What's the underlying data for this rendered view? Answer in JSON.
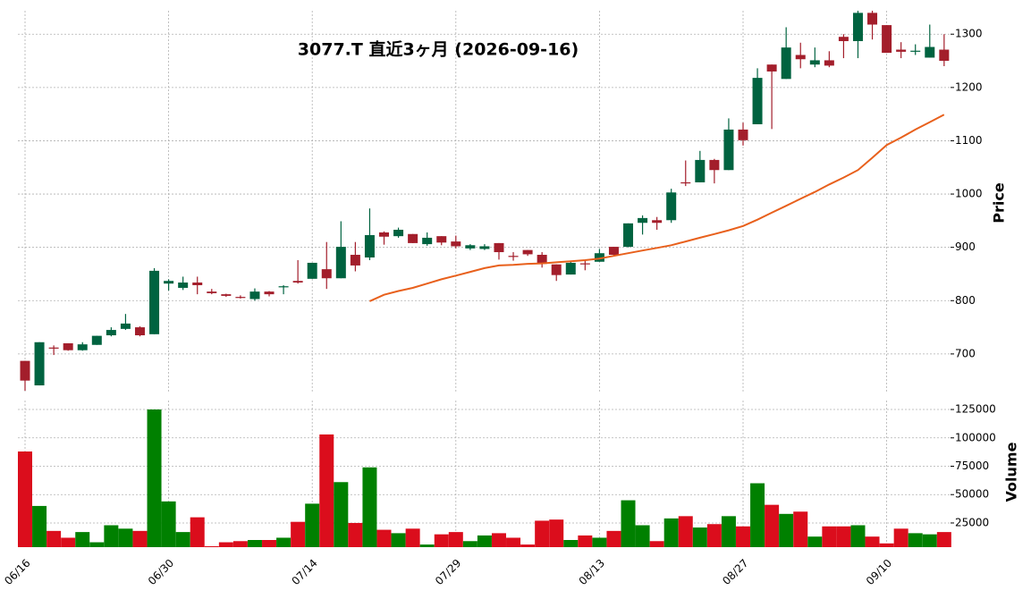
{
  "chart_data": {
    "type": "candlestick",
    "title": "3077.T  直近3ヶ月  (2026-09-16)",
    "ylabel": "Price",
    "categories": [
      "06/16",
      null,
      null,
      null,
      null,
      null,
      null,
      null,
      null,
      null,
      "06/30",
      null,
      null,
      null,
      null,
      null,
      null,
      null,
      null,
      null,
      "07/14",
      null,
      null,
      null,
      null,
      null,
      null,
      null,
      null,
      null,
      "07/29",
      null,
      null,
      null,
      null,
      null,
      null,
      null,
      null,
      null,
      "08/13",
      null,
      null,
      null,
      null,
      null,
      null,
      null,
      null,
      null,
      "08/27",
      null,
      null,
      null,
      null,
      null,
      null,
      null,
      null,
      null,
      "09/10",
      null,
      null,
      null,
      null
    ],
    "open": [
      687,
      641,
      712,
      720,
      707,
      717,
      735,
      747,
      750,
      737,
      832,
      824,
      834,
      817,
      812,
      807,
      803,
      817,
      825,
      837,
      841,
      859,
      842,
      886,
      881,
      928,
      921,
      925,
      906,
      921,
      911,
      898,
      897,
      908,
      884,
      895,
      886,
      868,
      849,
      870,
      873,
      901,
      901,
      946,
      951,
      951,
      1022,
      1022,
      1064,
      1045,
      1121,
      1131,
      1243,
      1216,
      1261,
      1243,
      1251,
      1295,
      1287,
      1340,
      1317,
      1271,
      1267,
      1256,
      1271
    ],
    "high": [
      687,
      722,
      716,
      720,
      722,
      734,
      750,
      775,
      752,
      861,
      840,
      845,
      845,
      822,
      813,
      810,
      823,
      818,
      829,
      876,
      871,
      910,
      949,
      910,
      973,
      930,
      937,
      925,
      928,
      921,
      922,
      906,
      906,
      908,
      891,
      895,
      891,
      868,
      874,
      875,
      897,
      901,
      945,
      960,
      957,
      1010,
      1063,
      1081,
      1066,
      1142,
      1134,
      1236,
      1243,
      1313,
      1284,
      1275,
      1268,
      1300,
      1344,
      1344,
      1317,
      1285,
      1281,
      1318,
      1300
    ],
    "low": [
      631,
      641,
      698,
      706,
      706,
      717,
      733,
      745,
      733,
      737,
      819,
      820,
      812,
      812,
      807,
      804,
      800,
      808,
      812,
      832,
      841,
      822,
      842,
      855,
      876,
      905,
      918,
      908,
      903,
      904,
      898,
      895,
      895,
      877,
      875,
      884,
      862,
      837,
      849,
      857,
      873,
      883,
      900,
      924,
      933,
      946,
      1015,
      1022,
      1020,
      1045,
      1091,
      1131,
      1122,
      1216,
      1236,
      1238,
      1238,
      1255,
      1255,
      1290,
      1265,
      1255,
      1261,
      1256,
      1240
    ],
    "close": [
      650,
      722,
      710,
      707,
      718,
      734,
      745,
      757,
      735,
      856,
      837,
      834,
      829,
      814,
      809,
      805,
      817,
      812,
      827,
      834,
      871,
      842,
      901,
      866,
      923,
      920,
      933,
      908,
      918,
      909,
      902,
      904,
      902,
      891,
      882,
      887,
      869,
      848,
      871,
      868,
      889,
      886,
      945,
      955,
      946,
      1003,
      1020,
      1064,
      1045,
      1121,
      1101,
      1218,
      1230,
      1275,
      1253,
      1251,
      1241,
      1287,
      1340,
      1318,
      1265,
      1267,
      1269,
      1276,
      1250
    ],
    "up_color": "#006340",
    "down_color": "#a31e2b",
    "ylim": [
      626,
      1344
    ],
    "yticks": [
      700,
      800,
      900,
      1000,
      1100,
      1200,
      1300
    ],
    "grid": true,
    "ma": {
      "color": "#e8601c",
      "values": [
        null,
        null,
        null,
        null,
        null,
        null,
        null,
        null,
        null,
        null,
        null,
        null,
        null,
        null,
        null,
        null,
        null,
        null,
        null,
        null,
        null,
        null,
        null,
        null,
        799,
        811,
        818,
        824,
        832,
        840,
        847,
        854,
        861,
        866,
        867,
        869,
        870,
        872,
        874,
        876,
        879,
        884,
        889,
        894,
        899,
        904,
        911,
        918,
        925,
        932,
        940,
        952,
        965,
        978,
        991,
        1004,
        1018,
        1031,
        1045,
        1068,
        1092,
        1106,
        1121,
        1135,
        1149
      ]
    },
    "volume": {
      "ylabel": "Volume",
      "up_color": "#008000",
      "down_color": "#db0d1c",
      "ylim": [
        3700,
        132900
      ],
      "yticks": [
        25000,
        50000,
        75000,
        100000,
        125000
      ],
      "values": [
        88000,
        40000,
        18000,
        12000,
        17000,
        8000,
        23000,
        20000,
        18000,
        125000,
        44000,
        17000,
        30000,
        4500,
        8000,
        9000,
        10000,
        10000,
        12000,
        26000,
        42000,
        103000,
        61000,
        25000,
        74000,
        19000,
        16000,
        20000,
        6000,
        15000,
        17000,
        9000,
        14000,
        16000,
        12000,
        6000,
        27000,
        28000,
        10000,
        14000,
        12000,
        18000,
        45000,
        23000,
        9000,
        29000,
        31000,
        21000,
        24000,
        31000,
        22000,
        60000,
        41000,
        33000,
        35000,
        13000,
        22000,
        22000,
        23000,
        13000,
        7000,
        20000,
        16000,
        15000,
        17000
      ]
    }
  }
}
